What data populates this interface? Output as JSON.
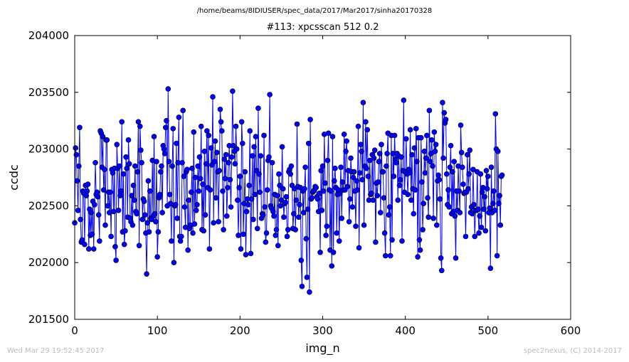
{
  "header": {
    "file_path": "/home/beams/8IDIUSER/spec_data/2017/Mar2017/sinha20170328"
  },
  "footer": {
    "timestamp": "Wed Mar 29 19:52:45 2017",
    "credit": "spec2nexus, (C) 2014-2017"
  },
  "chart_data": {
    "type": "line",
    "title": "#113: xpcsscan 512 0.2",
    "xlabel": "img_n",
    "ylabel": "ccdc",
    "xlim": [
      0,
      600
    ],
    "ylim": [
      201500,
      204000
    ],
    "xticks": [
      0,
      100,
      200,
      300,
      400,
      500,
      600
    ],
    "yticks": [
      201500,
      202000,
      202500,
      203000,
      203500,
      204000
    ],
    "grid": false,
    "marker": "circle",
    "color": "#0000ff",
    "series": [
      {
        "x_start": 0,
        "x_step": 1,
        "values": [
          202350,
          203010,
          202950,
          202720,
          202460,
          202850,
          203190,
          202380,
          202180,
          202200,
          202630,
          202610,
          202160,
          202680,
          202590,
          202630,
          202690,
          202120,
          202470,
          202240,
          202440,
          202250,
          202540,
          202120,
          202510,
          202880,
          202600,
          202620,
          202580,
          202420,
          202190,
          203160,
          203140,
          202840,
          203110,
          202640,
          202820,
          202330,
          203080,
          203080,
          202500,
          202620,
          202440,
          202620,
          202230,
          202820,
          202790,
          202450,
          202830,
          202140,
          202020,
          203040,
          202830,
          202460,
          202850,
          202590,
          202630,
          203240,
          202270,
          202780,
          202160,
          202280,
          202930,
          202830,
          202400,
          203080,
          202870,
          202390,
          202360,
          202590,
          202330,
          202680,
          202550,
          202850,
          202450,
          202430,
          202800,
          203240,
          202150,
          203200,
          202990,
          202880,
          202380,
          202560,
          202540,
          202420,
          202260,
          201900,
          202350,
          202720,
          202270,
          202630,
          202390,
          202380,
          202900,
          202410,
          203110,
          202430,
          202360,
          202890,
          202050,
          202270,
          202570,
          202600,
          202800,
          202850,
          202440,
          203030,
          203000,
          202960,
          203190,
          203250,
          202500,
          203530,
          202890,
          202600,
          202520,
          202190,
          202850,
          203180,
          202000,
          202500,
          202510,
          203050,
          202390,
          202880,
          203280,
          202230,
          202190,
          202230,
          202880,
          203340,
          202760,
          202490,
          202310,
          202800,
          202820,
          202110,
          202550,
          202300,
          202330,
          202620,
          202830,
          202260,
          203150,
          202340,
          202750,
          202460,
          202510,
          202850,
          202630,
          202930,
          202740,
          203200,
          202290,
          202690,
          202280,
          202980,
          202420,
          202870,
          203160,
          202660,
          203120,
          202120,
          202640,
          203010,
          202860,
          203460,
          202350,
          202890,
          203070,
          202570,
          202970,
          202800,
          202360,
          202810,
          203350,
          203240,
          203160,
          202630,
          202290,
          202910,
          202740,
          202950,
          202410,
          202660,
          202880,
          203030,
          202730,
          202490,
          202930,
          203510,
          203030,
          202980,
          202870,
          203200,
          203000,
          202550,
          202240,
          202660,
          202760,
          202120,
          203240,
          203050,
          202250,
          202520,
          202800,
          202070,
          202450,
          202560,
          202510,
          202680,
          203160,
          202080,
          202560,
          202940,
          202380,
          203020,
          202600,
          203110,
          202810,
          202300,
          203360,
          202780,
          202620,
          202940,
          202390,
          202430,
          202420,
          203120,
          202490,
          202180,
          202260,
          202640,
          202900,
          202930,
          203480,
          202500,
          202480,
          202880,
          202450,
          202410,
          202600,
          202240,
          202290,
          202590,
          202150,
          202780,
          202680,
          202500,
          202550,
          203020,
          202650,
          202400,
          202520,
          202530,
          202580,
          202230,
          202290,
          202800,
          202820,
          202780,
          202850,
          202680,
          202300,
          202430,
          202650,
          202290,
          202550,
          203220,
          202670,
          202400,
          202510,
          202660,
          202020,
          201790,
          202630,
          202440,
          202650,
          202840,
          202210,
          201870,
          202470,
          203050,
          201740,
          203260,
          202560,
          202570,
          202620,
          202630,
          202640,
          202670,
          202660,
          202580,
          202560,
          202450,
          202610,
          202090,
          202810,
          202460,
          202850,
          202630,
          203130,
          202700,
          202240,
          202320,
          202900,
          203140,
          202640,
          202110,
          202630,
          201970,
          203110,
          202090,
          202720,
          202830,
          202660,
          202260,
          202600,
          202640,
          202190,
          202610,
          202840,
          202390,
          202710,
          202640,
          203130,
          202640,
          202980,
          203070,
          202670,
          202810,
          202360,
          202560,
          202920,
          202800,
          202490,
          202750,
          202800,
          202630,
          202320,
          202720,
          202640,
          203200,
          202130,
          202790,
          203040,
          202980,
          202730,
          203410,
          202330,
          202850,
          203240,
          202830,
          203170,
          202760,
          202550,
          202900,
          202600,
          202610,
          202950,
          202550,
          202920,
          202990,
          202180,
          202700,
          202590,
          202710,
          202890,
          202960,
          202440,
          203040,
          202800,
          202800,
          202570,
          202260,
          202060,
          202850,
          202960,
          203140,
          202420,
          202490,
          202060,
          203120,
          202200,
          202960,
          202760,
          203120,
          202910,
          202880,
          202960,
          202550,
          202940,
          202680,
          202730,
          202930,
          202190,
          202810,
          203430,
          202620,
          202800,
          203090,
          202780,
          202600,
          202820,
          202790,
          203170,
          202550,
          202950,
          202650,
          202430,
          203010,
          202640,
          203180,
          202890,
          202050,
          203100,
          202200,
          202110,
          203100,
          202710,
          202290,
          202520,
          202980,
          202790,
          202920,
          203120,
          202570,
          202400,
          203340,
          202890,
          202960,
          203080,
          202850,
          202390,
          203150,
          202980,
          203040,
          202330,
          202720,
          202770,
          202730,
          202560,
          202040,
          201930,
          203410,
          202920,
          203320,
          203230,
          203260,
          202780,
          202510,
          202640,
          202490,
          202840,
          203030,
          202430,
          202800,
          202450,
          202890,
          202410,
          202040,
          202630,
          202460,
          202850,
          202630,
          202440,
          203210,
          202970,
          202840,
          202690,
          202610,
          202620,
          202230,
          202620,
          202950,
          202650,
          202780,
          202990,
          202440,
          202490,
          202430,
          202820,
          202510,
          202230,
          202460,
          202460,
          202800,
          202470,
          202260,
          202410,
          202780,
          202310,
          202620,
          202660,
          202470,
          202580,
          202280,
          202810,
          202650,
          202760,
          202440,
          202480,
          201950,
          202840,
          202440,
          202520,
          202630,
          202460,
          203310,
          203000,
          202060,
          202980,
          202520,
          202590,
          202330,
          202760,
          202770
        ]
      }
    ]
  }
}
